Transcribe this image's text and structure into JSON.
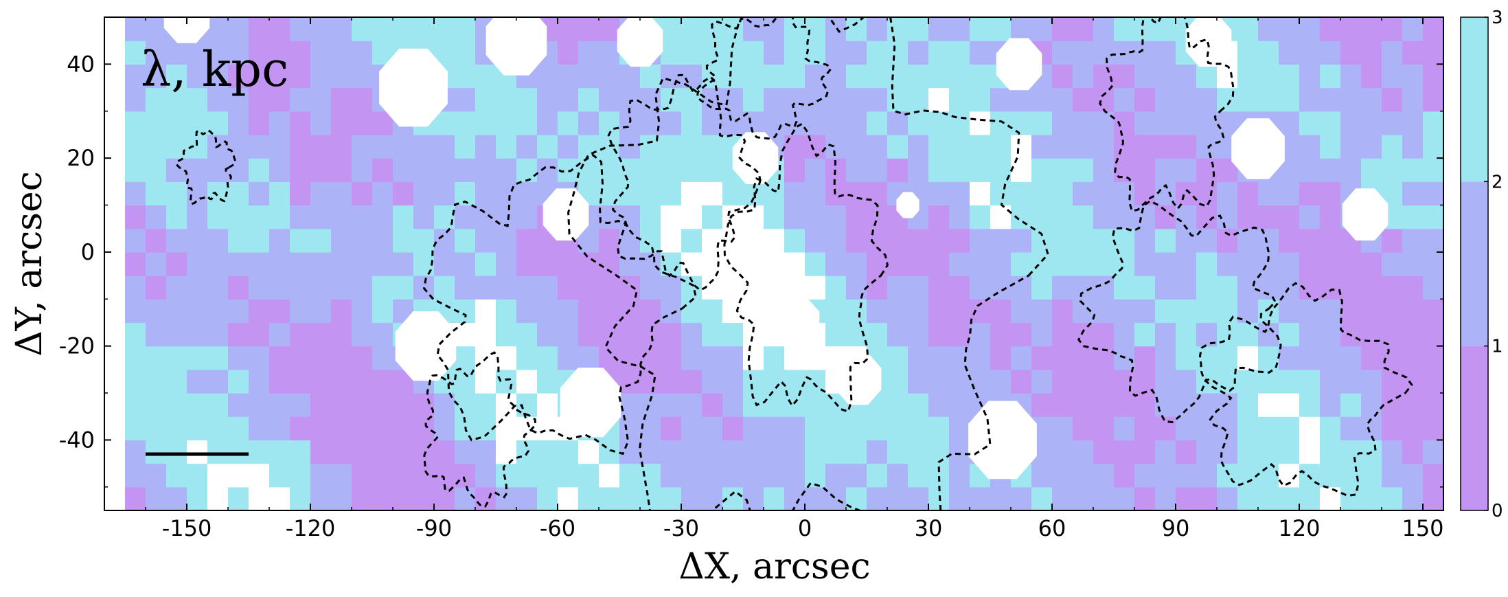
{
  "chart_data": {
    "type": "heatmap",
    "subtype": "filled-contour map with dashed contour overlay",
    "title": "λ, kpc",
    "xlabel": "ΔX, arcsec",
    "ylabel": "ΔY, arcsec",
    "xlim": [
      -170,
      155
    ],
    "ylim": [
      -55,
      50
    ],
    "xticks": [
      -150,
      -120,
      -90,
      -60,
      -30,
      0,
      30,
      60,
      90,
      120,
      150
    ],
    "yticks": [
      40,
      20,
      0,
      -20,
      -40
    ],
    "grid": false,
    "colorbar": {
      "min": 0,
      "max": 3,
      "ticks": [
        0,
        1,
        2,
        3
      ],
      "levels": [
        {
          "range": [
            0,
            1
          ],
          "color": "#c494f2"
        },
        {
          "range": [
            1,
            2
          ],
          "color": "#adb3f7"
        },
        {
          "range": [
            2,
            3
          ],
          "color": "#9ee6f0"
        }
      ]
    },
    "overlay": {
      "style": "dashed black contours",
      "color": "#000000"
    },
    "scale_bar": {
      "x": [
        -160,
        -135
      ],
      "y": -43
    }
  }
}
